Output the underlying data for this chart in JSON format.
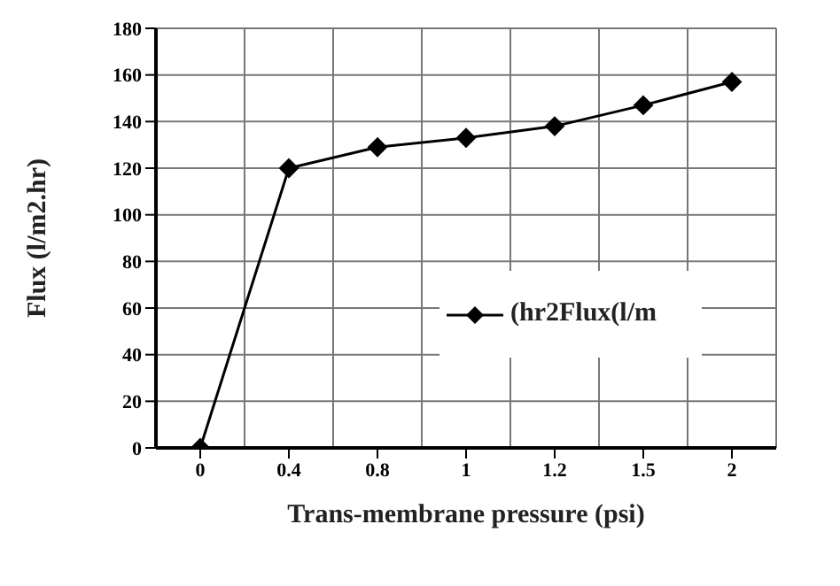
{
  "chart_data": {
    "type": "line",
    "xlabel": "Trans-membrane pressure (psi)",
    "ylabel": "Flux (l/m2.hr)",
    "categories": [
      "0",
      "0.4",
      "0.8",
      "1",
      "1.2",
      "1.5",
      "2"
    ],
    "series": [
      {
        "name": "(hr2Flux(l/m",
        "color": "#000000",
        "values": [
          0,
          120,
          129,
          133,
          138,
          147,
          157
        ]
      }
    ],
    "ylim": [
      0,
      180
    ],
    "yticks": [
      0,
      20,
      40,
      60,
      80,
      100,
      120,
      140,
      160,
      180
    ],
    "grid": true,
    "legend": "right",
    "marker": "diamond",
    "line_style": "solid"
  }
}
